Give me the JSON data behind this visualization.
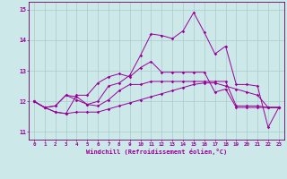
{
  "xlabel": "Windchill (Refroidissement éolien,°C)",
  "background_color": "#cce8e8",
  "grid_color": "#aacccc",
  "line_color": "#990099",
  "spine_color": "#660066",
  "xlim": [
    -0.5,
    23.5
  ],
  "ylim": [
    10.75,
    15.25
  ],
  "yticks": [
    11,
    12,
    13,
    14,
    15
  ],
  "xticks": [
    0,
    1,
    2,
    3,
    4,
    5,
    6,
    7,
    8,
    9,
    10,
    11,
    12,
    13,
    14,
    15,
    16,
    17,
    18,
    19,
    20,
    21,
    22,
    23
  ],
  "series": [
    [
      12.0,
      11.8,
      11.85,
      12.2,
      12.15,
      11.9,
      11.85,
      12.05,
      12.35,
      12.55,
      12.55,
      12.65,
      12.65,
      12.65,
      12.65,
      12.65,
      12.65,
      12.65,
      12.65,
      11.85,
      11.85,
      11.85,
      11.8,
      11.8
    ],
    [
      12.0,
      11.8,
      11.65,
      11.6,
      11.65,
      11.65,
      11.65,
      11.75,
      11.85,
      11.95,
      12.05,
      12.15,
      12.25,
      12.35,
      12.45,
      12.55,
      12.6,
      12.6,
      12.5,
      12.4,
      12.3,
      12.2,
      11.8,
      11.8
    ],
    [
      12.0,
      11.8,
      11.85,
      12.2,
      12.05,
      11.9,
      12.0,
      12.5,
      12.6,
      12.85,
      13.5,
      14.2,
      14.15,
      14.05,
      14.3,
      14.9,
      14.25,
      13.55,
      13.8,
      12.55,
      12.55,
      12.5,
      11.15,
      11.8
    ],
    [
      12.0,
      11.8,
      11.65,
      11.6,
      12.2,
      12.2,
      12.6,
      12.8,
      12.9,
      12.8,
      13.1,
      13.3,
      12.95,
      12.95,
      12.95,
      12.95,
      12.95,
      12.3,
      12.4,
      11.8,
      11.8,
      11.8,
      11.8,
      11.8
    ]
  ],
  "marker": "D",
  "markersize": 1.8,
  "linewidth": 0.7
}
